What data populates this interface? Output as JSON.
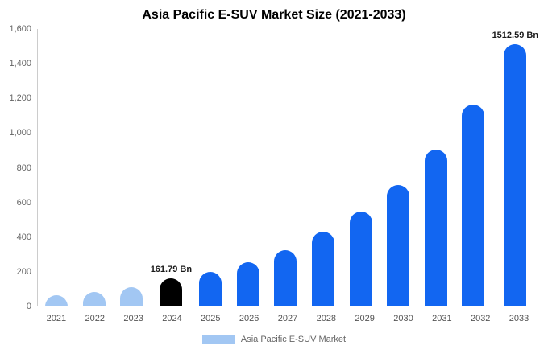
{
  "title": "Asia Pacific E-SUV Market Size (2021-2033)",
  "legend": {
    "label": "Asia Pacific E-SUV Market",
    "swatch_color": "#a2c7f3"
  },
  "colors": {
    "light_blue": "#a2c7f3",
    "bright_blue": "#1266f1",
    "black": "#000000",
    "axis_line": "#cccccc",
    "tick_text": "#666666"
  },
  "chart_data": {
    "type": "bar",
    "title": "Asia Pacific E-SUV Market Size (2021-2033)",
    "xlabel": "",
    "ylabel": "",
    "ylim": [
      0,
      1600
    ],
    "grid": false,
    "legend_position": "bottom",
    "categories": [
      "2021",
      "2022",
      "2023",
      "2024",
      "2025",
      "2026",
      "2027",
      "2028",
      "2029",
      "2030",
      "2031",
      "2032",
      "2033"
    ],
    "values": [
      65,
      85,
      110,
      161.79,
      200,
      255,
      325,
      430,
      545,
      700,
      905,
      1165,
      1512.59
    ],
    "bar_colors": [
      "#a2c7f3",
      "#a2c7f3",
      "#a2c7f3",
      "#000000",
      "#1266f1",
      "#1266f1",
      "#1266f1",
      "#1266f1",
      "#1266f1",
      "#1266f1",
      "#1266f1",
      "#1266f1",
      "#1266f1"
    ],
    "annotations": {
      "2024": "161.79 Bn",
      "2033": "1512.59 Bn"
    },
    "yticks": [
      {
        "value": 0,
        "label": "0"
      },
      {
        "value": 200,
        "label": "200"
      },
      {
        "value": 400,
        "label": "400"
      },
      {
        "value": 600,
        "label": "600"
      },
      {
        "value": 800,
        "label": "800"
      },
      {
        "value": 1000,
        "label": "1,000"
      },
      {
        "value": 1200,
        "label": "1,200"
      },
      {
        "value": 1400,
        "label": "1,400"
      },
      {
        "value": 1600,
        "label": "1,600"
      }
    ]
  }
}
